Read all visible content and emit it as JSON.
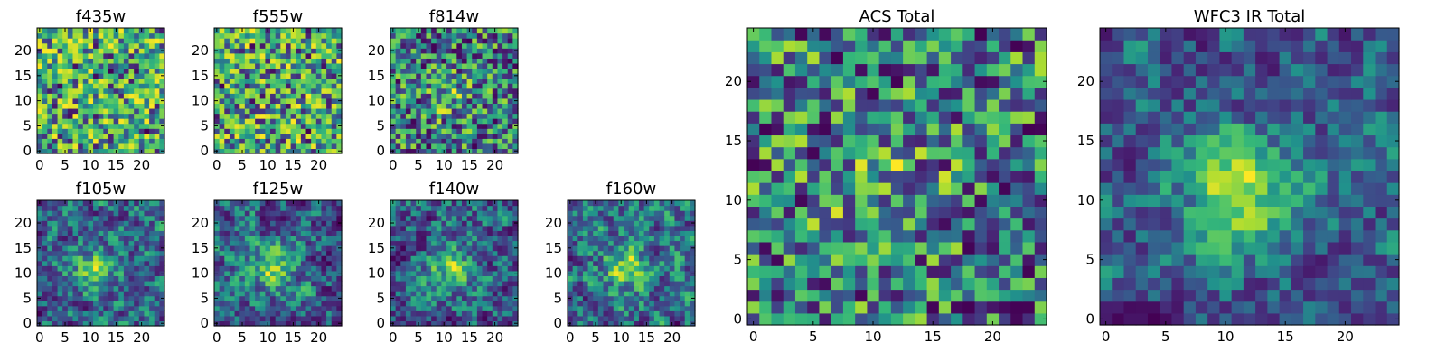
{
  "colormap": "viridis",
  "chart_data": [
    {
      "type": "heatmap",
      "title": "f435w",
      "size": 25,
      "xticks": [
        0,
        5,
        10,
        15,
        20
      ],
      "yticks": [
        0,
        5,
        10,
        15,
        20
      ],
      "structure": "noise",
      "seed": 11
    },
    {
      "type": "heatmap",
      "title": "f555w",
      "size": 25,
      "xticks": [
        0,
        5,
        10,
        15,
        20
      ],
      "yticks": [
        0,
        5,
        10,
        15,
        20
      ],
      "structure": "noise",
      "seed": 23
    },
    {
      "type": "heatmap",
      "title": "f814w",
      "size": 25,
      "xticks": [
        0,
        5,
        10,
        15,
        20
      ],
      "yticks": [
        0,
        5,
        10,
        15,
        20
      ],
      "structure": "weak-center",
      "seed": 37
    },
    {
      "type": "heatmap",
      "title": "f105w",
      "size": 25,
      "xticks": [
        0,
        5,
        10,
        15,
        20
      ],
      "yticks": [
        0,
        5,
        10,
        15,
        20
      ],
      "structure": "smooth-center",
      "seed": 41
    },
    {
      "type": "heatmap",
      "title": "f125w",
      "size": 25,
      "xticks": [
        0,
        5,
        10,
        15,
        20
      ],
      "yticks": [
        0,
        5,
        10,
        15,
        20
      ],
      "structure": "smooth-center",
      "seed": 53
    },
    {
      "type": "heatmap",
      "title": "f140w",
      "size": 25,
      "xticks": [
        0,
        5,
        10,
        15,
        20
      ],
      "yticks": [
        0,
        5,
        10,
        15,
        20
      ],
      "structure": "smooth-center",
      "seed": 67
    },
    {
      "type": "heatmap",
      "title": "f160w",
      "size": 25,
      "xticks": [
        0,
        5,
        10,
        15,
        20
      ],
      "yticks": [
        0,
        5,
        10,
        15,
        20
      ],
      "structure": "smooth-center",
      "seed": 79
    },
    {
      "type": "heatmap",
      "title": "ACS Total",
      "size": 25,
      "xticks": [
        0,
        5,
        10,
        15,
        20
      ],
      "yticks": [
        0,
        5,
        10,
        15,
        20
      ],
      "structure": "weak-center",
      "seed": 83
    },
    {
      "type": "heatmap",
      "title": "WFC3 IR Total",
      "size": 25,
      "xticks": [
        0,
        5,
        10,
        15,
        20
      ],
      "yticks": [
        0,
        5,
        10,
        15,
        20
      ],
      "structure": "strong-center",
      "seed": 97
    }
  ]
}
